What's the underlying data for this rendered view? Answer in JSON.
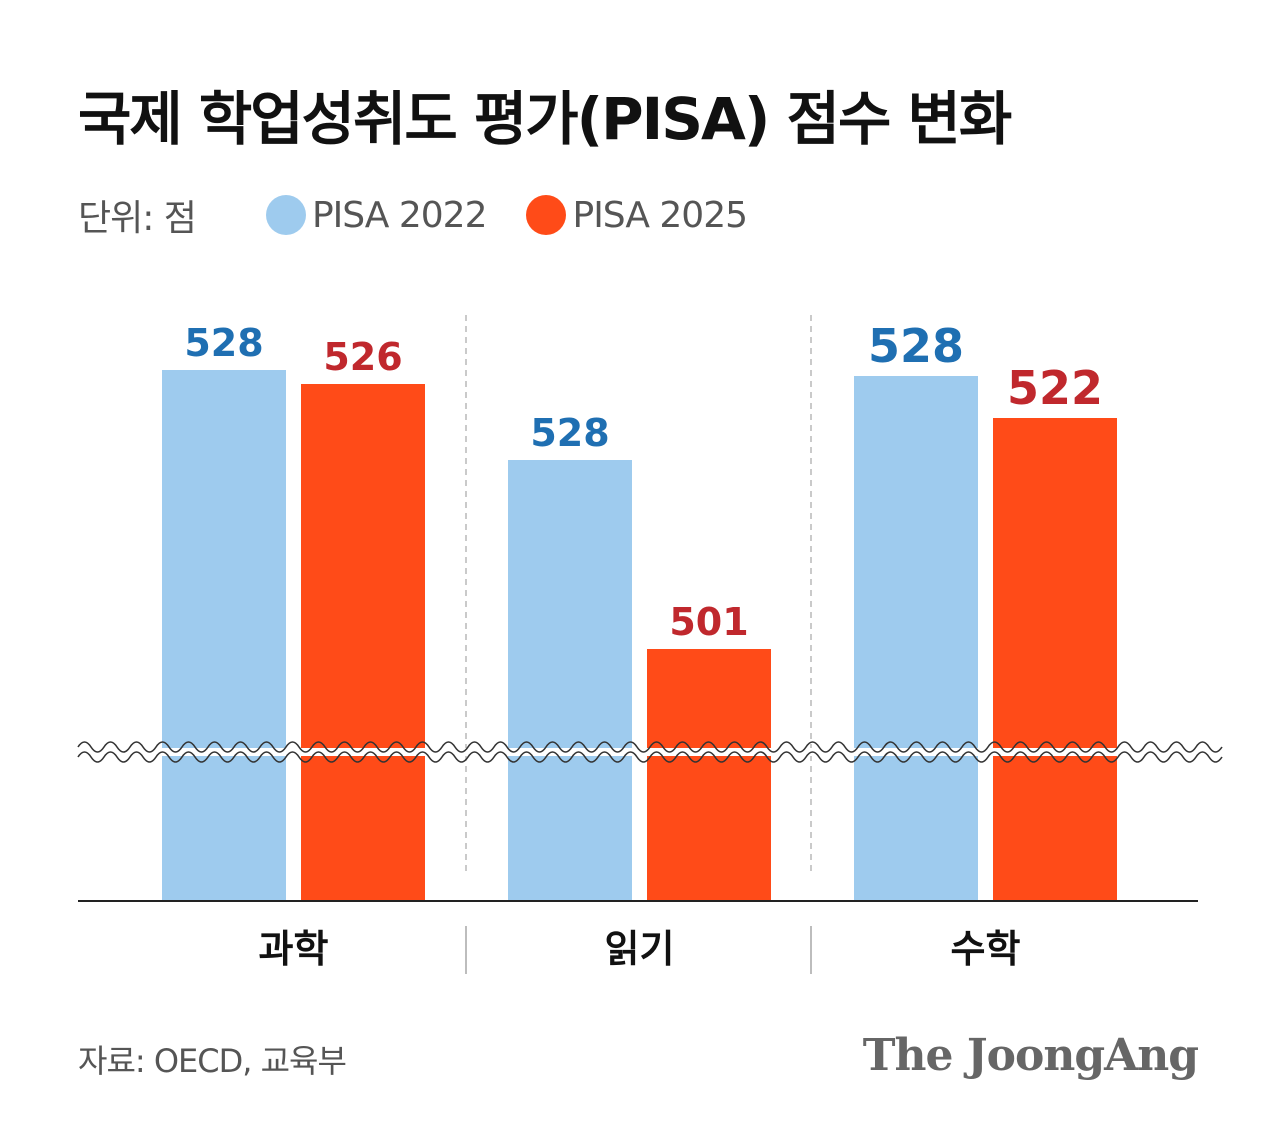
{
  "header": {
    "title": "국제 학업성취도 평가(PISA) 점수 변화",
    "unit_label": "단위: 점"
  },
  "legend": [
    {
      "label": "PISA 2022",
      "color": "#9ecbee"
    },
    {
      "label": "PISA 2025",
      "color": "#ff4b18"
    }
  ],
  "chart_data": {
    "type": "bar",
    "title": "국제 학업성취도 평가(PISA) 점수 변화",
    "unit": "단위: 점",
    "categories": [
      "과학",
      "읽기",
      "수학"
    ],
    "series": [
      {
        "name": "PISA 2022",
        "values": [
          528,
          528,
          528
        ],
        "color": "#9ecbee",
        "label_color": "#1f6fb2"
      },
      {
        "name": "PISA 2025",
        "values": [
          526,
          501,
          522
        ],
        "color": "#ff4b18",
        "label_color": "#c0282d"
      }
    ],
    "axis_break": true,
    "legend_position": "top-left"
  },
  "footer": {
    "source": "자료: OECD, 교육부",
    "brand": "The JoongAng"
  }
}
